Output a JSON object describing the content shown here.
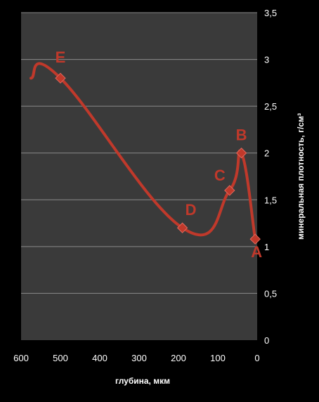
{
  "chart_data": {
    "type": "line",
    "title": "",
    "xlabel": "глубина, мкм",
    "ylabel": "минеральная плотность, г/см³",
    "xlim": [
      600,
      0
    ],
    "ylim": [
      0,
      3.5
    ],
    "x_reversed": true,
    "y_axis_side": "right",
    "grid": {
      "horizontal": true,
      "vertical": false
    },
    "legend": "none",
    "x_ticks": [
      "600",
      "500",
      "400",
      "300",
      "200",
      "100",
      "0"
    ],
    "y_ticks": [
      "0",
      "0,5",
      "1",
      "1,5",
      "2",
      "2,5",
      "3",
      "3,5"
    ],
    "series": [
      {
        "color": "#c0392b",
        "smooth": true,
        "x": [
          575,
          500,
          190,
          70,
          40,
          5
        ],
        "y": [
          2.8,
          2.8,
          1.2,
          1.6,
          2.0,
          1.08
        ],
        "markers": [
          false,
          true,
          true,
          true,
          true,
          true
        ]
      }
    ],
    "point_labels": [
      {
        "text": "E",
        "x": 500,
        "y": 2.8
      },
      {
        "text": "D",
        "x": 190,
        "y": 1.2
      },
      {
        "text": "C",
        "x": 70,
        "y": 1.6
      },
      {
        "text": "B",
        "x": 40,
        "y": 2.0
      },
      {
        "text": "A",
        "x": 5,
        "y": 1.08
      }
    ]
  },
  "colors": {
    "background": "#000000",
    "plot_area": "#3a3a3a",
    "gridline": "#8a8a8a",
    "series": "#c0392b",
    "text": "#ffffff"
  }
}
